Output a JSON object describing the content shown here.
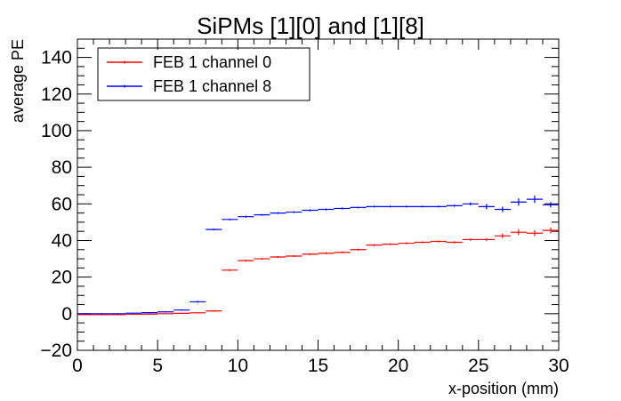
{
  "chart_data": {
    "type": "scatter",
    "title": "SiPMs [1][0] and [1][8]",
    "xlabel": "x-position (mm)",
    "ylabel": "average PE",
    "xlim": [
      0,
      30
    ],
    "ylim": [
      -20,
      150
    ],
    "x_ticks": [
      0,
      5,
      10,
      15,
      20,
      25,
      30
    ],
    "y_ticks": [
      -20,
      0,
      20,
      40,
      60,
      80,
      100,
      120,
      140
    ],
    "grid": false,
    "legend_position": "top-left",
    "bin_width": 1,
    "series": [
      {
        "name": "FEB 1 channel 0",
        "color": "#ff0000",
        "x": [
          0.5,
          1.5,
          2.5,
          3.5,
          4.5,
          5.5,
          6.5,
          7.5,
          8.5,
          9.5,
          10.5,
          11.5,
          12.5,
          13.5,
          14.5,
          15.5,
          16.5,
          17.5,
          18.5,
          19.5,
          20.5,
          21.5,
          22.5,
          23.5,
          24.5,
          25.5,
          26.5,
          27.5,
          28.5,
          29.5
        ],
        "y": [
          -0.5,
          -0.5,
          -0.5,
          -0.3,
          -0.2,
          0,
          0.2,
          0.5,
          1.5,
          23.8,
          29,
          30,
          31,
          31.5,
          32.5,
          33,
          33.5,
          35,
          37.5,
          38,
          38.5,
          39,
          39.5,
          39,
          40.5,
          40.5,
          42.5,
          44.5,
          44,
          45.5
        ],
        "err": [
          0.3,
          0.3,
          0.3,
          0.3,
          0.3,
          0.3,
          0.3,
          0.3,
          0.4,
          0.5,
          0.5,
          0.5,
          0.5,
          0.5,
          0.5,
          0.5,
          0.5,
          0.5,
          0.5,
          0.5,
          0.5,
          0.5,
          0.5,
          0.6,
          0.6,
          0.7,
          1.2,
          1.5,
          1.6,
          1.5
        ]
      },
      {
        "name": "FEB 1 channel 8",
        "color": "#0000ff",
        "x": [
          0.5,
          1.5,
          2.5,
          3.5,
          4.5,
          5.5,
          6.5,
          7.5,
          8.5,
          9.5,
          10.5,
          11.5,
          12.5,
          13.5,
          14.5,
          15.5,
          16.5,
          17.5,
          18.5,
          19.5,
          20.5,
          21.5,
          22.5,
          23.5,
          24.5,
          25.5,
          26.5,
          27.5,
          28.5,
          29.5
        ],
        "y": [
          0,
          0,
          0,
          0.3,
          0.6,
          1,
          2,
          6.5,
          46,
          51.5,
          53,
          54,
          55,
          55.5,
          56.5,
          57,
          57.5,
          58,
          58.5,
          58.5,
          58.5,
          58.5,
          58.5,
          59,
          60,
          58.5,
          57,
          61,
          62.5,
          59.5
        ],
        "err": [
          0.3,
          0.3,
          0.3,
          0.3,
          0.3,
          0.3,
          0.4,
          0.5,
          0.5,
          0.5,
          0.5,
          0.5,
          0.5,
          0.5,
          0.5,
          0.5,
          0.5,
          0.5,
          0.5,
          0.5,
          0.5,
          0.5,
          0.5,
          0.6,
          0.8,
          1.5,
          1.5,
          2,
          2,
          1.5
        ]
      }
    ]
  }
}
